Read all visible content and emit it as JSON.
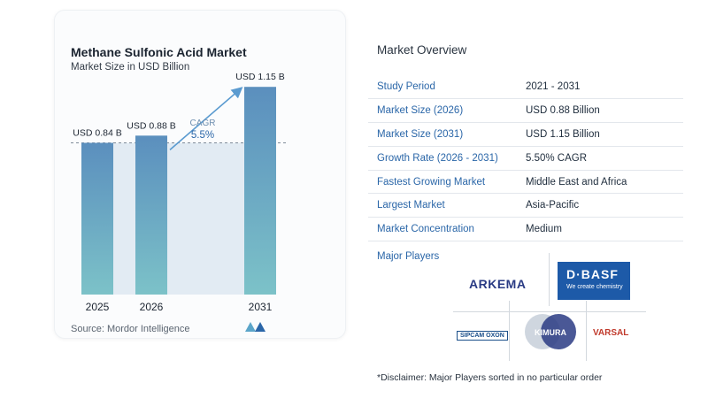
{
  "chart_data": {
    "type": "bar",
    "title": "Methane Sulfonic Acid Market",
    "subtitle": "Market Size in USD Billion",
    "categories": [
      "2025",
      "2026",
      "2031"
    ],
    "values": [
      0.84,
      0.88,
      1.15
    ],
    "data_labels": [
      "USD 0.84 B",
      "USD 0.88 B",
      "USD 1.15 B"
    ],
    "annotation": {
      "label": "CAGR",
      "value": "5.5%"
    },
    "ylim": [
      0,
      1.2
    ],
    "grid": false,
    "legend": "none"
  },
  "source": "Source: Mordor Intelligence",
  "colors": {
    "bar_top": "#5b8fbe",
    "bar_bottom": "#7cc2c8",
    "accent": "#2a66a8",
    "area": "#e2ebf3"
  },
  "overview": {
    "title": "Market Overview",
    "rows": [
      {
        "key": "Study Period",
        "value": "2021 - 2031"
      },
      {
        "key": "Market Size (2026)",
        "value": "USD 0.88 Billion"
      },
      {
        "key": "Market Size (2031)",
        "value": "USD 1.15 Billion"
      },
      {
        "key": "Growth Rate (2026 - 2031)",
        "value": "5.50% CAGR"
      },
      {
        "key": "Fastest Growing Market",
        "value": "Middle East and Africa"
      },
      {
        "key": "Largest Market",
        "value": "Asia-Pacific"
      },
      {
        "key": "Market Concentration",
        "value": "Medium"
      }
    ]
  },
  "players": {
    "label": "Major Players",
    "arkema": "ARKEMA",
    "basf_mark": "D·BASF",
    "basf_tagline": "We create chemistry",
    "sipcam": "SIPCAM OXON",
    "varsal": "VARSAL",
    "kimura": "KIMURA"
  },
  "disclaimer": "*Disclaimer: Major Players sorted in no particular order"
}
